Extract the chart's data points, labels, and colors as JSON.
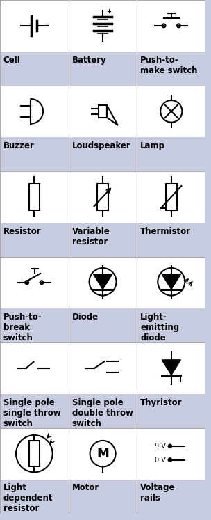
{
  "bg_color": "#c8cce0",
  "white": "#ffffff",
  "text_color": "#000000",
  "symbol_color": "#000000",
  "labels": [
    [
      "Cell",
      "Battery",
      "Push-to-\nmake switch"
    ],
    [
      "Buzzer",
      "Loudspeaker",
      "Lamp"
    ],
    [
      "Resistor",
      "Variable\nresistor",
      "Thermistor"
    ],
    [
      "Push-to-\nbreak\nswitch",
      "Diode",
      "Light-\nemitting\ndiode"
    ],
    [
      "Single pole\nsingle throw\nswitch",
      "Single pole\ndouble throw\nswitch",
      "Thyristor"
    ],
    [
      "Light\ndependent\nresistor",
      "Motor",
      "Voltage\nrails"
    ]
  ],
  "label_fontsize": 8.5
}
